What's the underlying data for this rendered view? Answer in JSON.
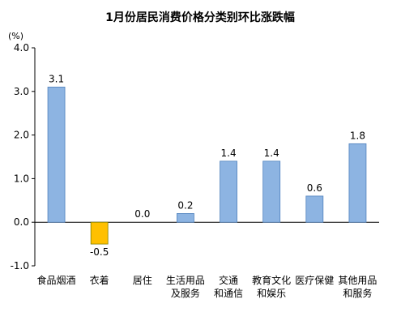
{
  "chart_data": {
    "type": "bar",
    "title": "1月份居民消费价格分类别环比涨跌幅",
    "unit_label": "(%)",
    "categories": [
      [
        "食品烟酒"
      ],
      [
        "衣着"
      ],
      [
        "居住"
      ],
      [
        "生活用品",
        "及服务"
      ],
      [
        "交通",
        "和通信"
      ],
      [
        "教育文化",
        "和娱乐"
      ],
      [
        "医疗保健"
      ],
      [
        "其他用品",
        "和服务"
      ]
    ],
    "values": [
      3.1,
      -0.5,
      0.0,
      0.2,
      1.4,
      1.4,
      0.6,
      1.8
    ],
    "data_labels": [
      "3.1",
      "-0.5",
      "0.0",
      "0.2",
      "1.4",
      "1.4",
      "0.6",
      "1.8"
    ],
    "ylim": [
      -1.0,
      4.0
    ],
    "yticks": [
      "-1.0",
      "0.0",
      "1.0",
      "2.0",
      "3.0",
      "4.0"
    ],
    "grid": false,
    "colors": {
      "positive": "#8DB4E2",
      "negative": "#FFC000",
      "positive_edge": "#4F81BD",
      "negative_edge": "#7F7F00"
    }
  }
}
